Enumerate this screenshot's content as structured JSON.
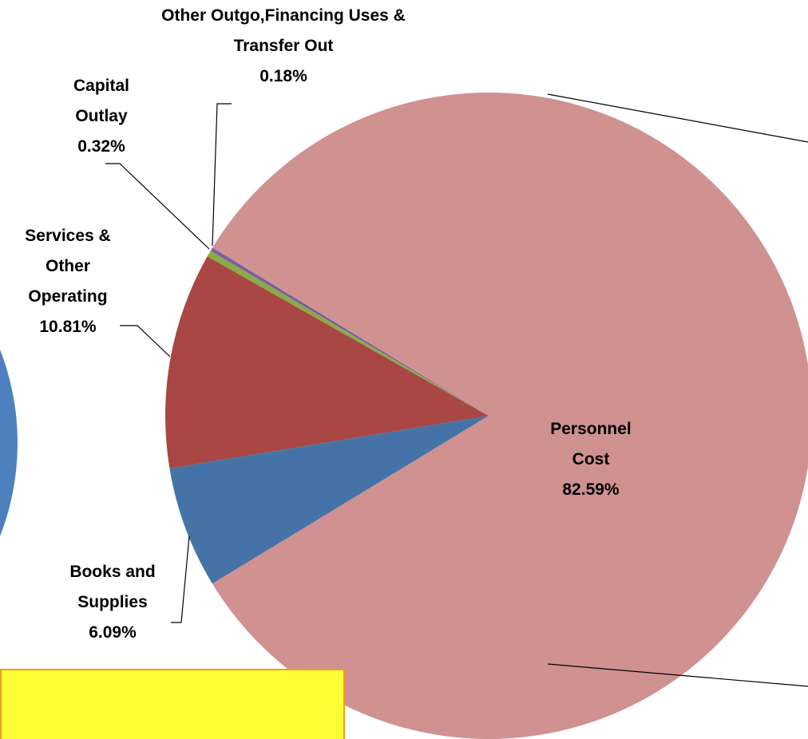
{
  "chart_data": {
    "type": "pie",
    "categories": [
      "Books and Supplies",
      "Services & Other Operating",
      "Capital Outlay",
      "Other Outgo,Financing Uses & Transfer Out",
      "Personnel Cost"
    ],
    "values": [
      6.09,
      10.81,
      0.32,
      0.18,
      82.59
    ],
    "value_labels": [
      "6.09%",
      "10.81%",
      "0.32%",
      "0.18%",
      "82.59%"
    ],
    "colors": [
      "#4573a7",
      "#a84744",
      "#8aab45",
      "#7a5ea0",
      "#d09191"
    ]
  }
}
